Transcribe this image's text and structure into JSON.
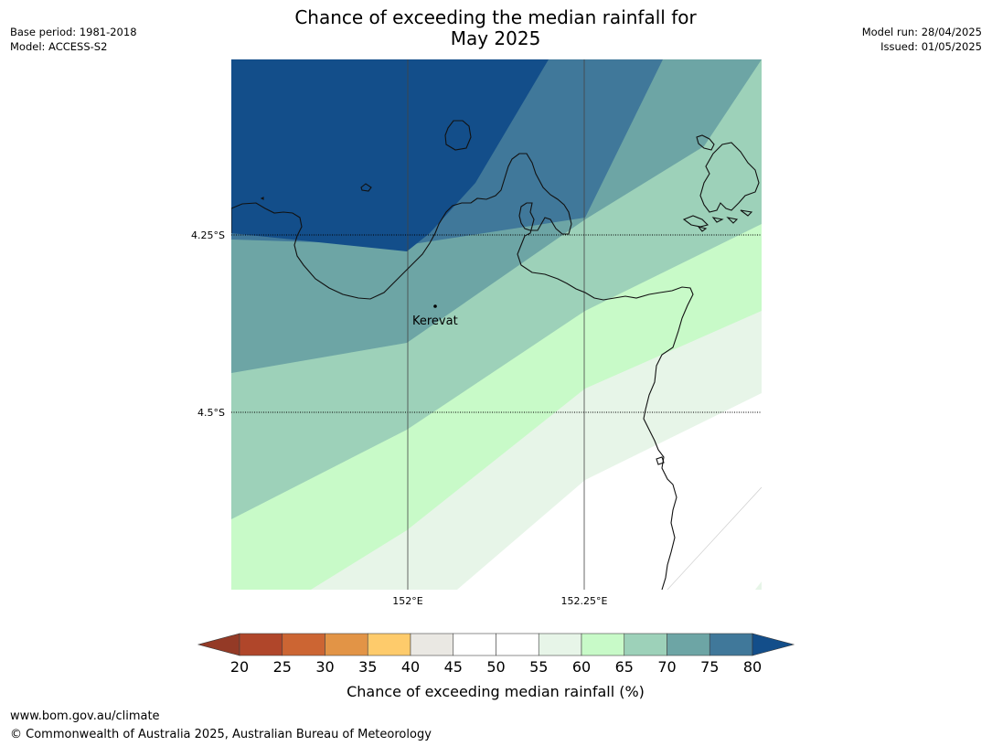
{
  "title_lines": [
    "Chance of exceeding the median rainfall for",
    "May 2025"
  ],
  "meta_left": [
    "Base period: 1981-2018",
    "Model: ACCESS-S2"
  ],
  "meta_right": [
    "Model run: 28/04/2025",
    "Issued: 01/05/2025"
  ],
  "map": {
    "lat_labels": [
      "4.25°S",
      "4.5°S"
    ],
    "lon_labels": [
      "152°E",
      "152.25°E"
    ],
    "place": "Kerevat"
  },
  "colorbar": {
    "ticks": [
      "20",
      "25",
      "30",
      "35",
      "40",
      "45",
      "50",
      "55",
      "60",
      "65",
      "70",
      "75",
      "80"
    ],
    "label": "Chance of exceeding median rainfall (%)",
    "colors": [
      "#b0462a",
      "#cc6533",
      "#e29446",
      "#fecb6b",
      "#eae8e3",
      "#ffffff",
      "#ffffff",
      "#e7f5e8",
      "#c8fac8",
      "#9dd1b9",
      "#6da5a5",
      "#40789a"
    ],
    "under_color": "#943a26",
    "over_color": "#134e8a"
  },
  "footer": [
    "www.bom.gov.au/climate",
    "© Commonwealth of Australia 2025, Australian Bureau of Meteorology"
  ]
}
